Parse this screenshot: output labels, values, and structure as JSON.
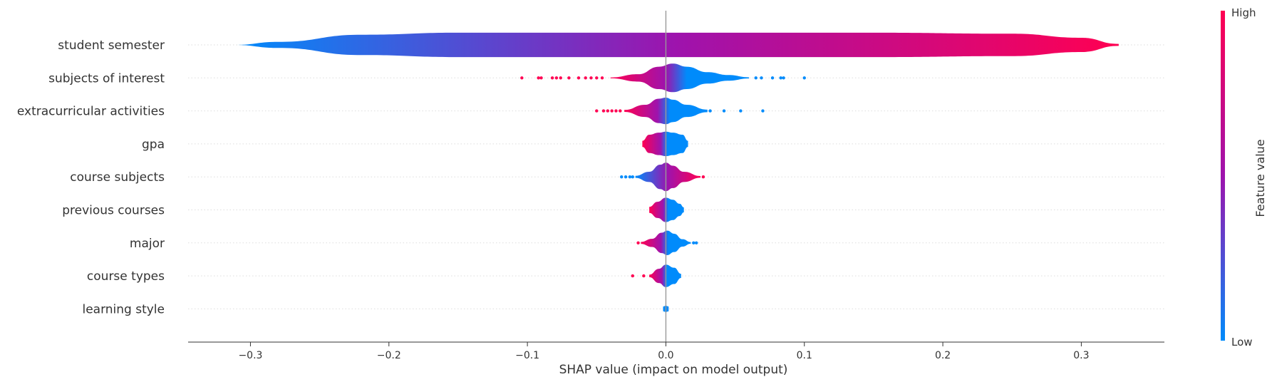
{
  "chart_data": {
    "type": "violin",
    "xlabel": "SHAP value (impact on model output)",
    "xlim": [
      -0.345,
      0.36
    ],
    "xticks": [
      {
        "value": -0.3,
        "label": "−0.3"
      },
      {
        "value": -0.2,
        "label": "−0.2"
      },
      {
        "value": -0.1,
        "label": "−0.1"
      },
      {
        "value": 0.0,
        "label": "0.0"
      },
      {
        "value": 0.1,
        "label": "0.1"
      },
      {
        "value": 0.2,
        "label": "0.2"
      },
      {
        "value": 0.3,
        "label": "0.3"
      }
    ],
    "grid": "horizontal dotted per feature",
    "colorbar": {
      "label": "Feature value",
      "high": "High",
      "low": "Low",
      "low_color": "#008bfb",
      "high_color": "#ff0052"
    },
    "features": [
      {
        "name": "student semester",
        "range": [
          -0.312,
          0.327
        ],
        "color_trend": "low_left_high_right",
        "profile": [
          [
            -0.312,
            0.0
          ],
          [
            -0.28,
            0.15
          ],
          [
            -0.22,
            0.5
          ],
          [
            -0.15,
            0.6
          ],
          [
            -0.05,
            0.6
          ],
          [
            0.05,
            0.6
          ],
          [
            0.15,
            0.6
          ],
          [
            0.25,
            0.55
          ],
          [
            0.3,
            0.35
          ],
          [
            0.327,
            0.05
          ]
        ],
        "outliers": []
      },
      {
        "name": "subjects of interest",
        "range": [
          -0.04,
          0.06
        ],
        "color_trend": "high_left_low_right",
        "profile": [
          [
            -0.04,
            0.02
          ],
          [
            -0.02,
            0.18
          ],
          [
            -0.005,
            0.55
          ],
          [
            0.005,
            0.7
          ],
          [
            0.015,
            0.55
          ],
          [
            0.03,
            0.28
          ],
          [
            0.045,
            0.14
          ],
          [
            0.06,
            0.03
          ]
        ],
        "outliers": [
          {
            "x": -0.104,
            "c": "high"
          },
          {
            "x": -0.092,
            "c": "high"
          },
          {
            "x": -0.09,
            "c": "high"
          },
          {
            "x": -0.082,
            "c": "high"
          },
          {
            "x": -0.079,
            "c": "high"
          },
          {
            "x": -0.076,
            "c": "high"
          },
          {
            "x": -0.07,
            "c": "high"
          },
          {
            "x": -0.063,
            "c": "high"
          },
          {
            "x": -0.058,
            "c": "high"
          },
          {
            "x": -0.054,
            "c": "high"
          },
          {
            "x": -0.05,
            "c": "high"
          },
          {
            "x": -0.046,
            "c": "high"
          },
          {
            "x": 0.065,
            "c": "low"
          },
          {
            "x": 0.069,
            "c": "low"
          },
          {
            "x": 0.077,
            "c": "low"
          },
          {
            "x": 0.083,
            "c": "low"
          },
          {
            "x": 0.085,
            "c": "low"
          },
          {
            "x": 0.1,
            "c": "low"
          }
        ]
      },
      {
        "name": "extracurricular activities",
        "range": [
          -0.03,
          0.03
        ],
        "color_trend": "high_left_low_right",
        "profile": [
          [
            -0.03,
            0.05
          ],
          [
            -0.015,
            0.3
          ],
          [
            -0.005,
            0.6
          ],
          [
            0.0,
            0.65
          ],
          [
            0.005,
            0.55
          ],
          [
            0.015,
            0.3
          ],
          [
            0.03,
            0.06
          ]
        ],
        "outliers": [
          {
            "x": -0.05,
            "c": "high"
          },
          {
            "x": -0.045,
            "c": "high"
          },
          {
            "x": -0.042,
            "c": "high"
          },
          {
            "x": -0.039,
            "c": "high"
          },
          {
            "x": -0.036,
            "c": "high"
          },
          {
            "x": -0.033,
            "c": "high"
          },
          {
            "x": 0.032,
            "c": "low"
          },
          {
            "x": 0.042,
            "c": "low"
          },
          {
            "x": 0.054,
            "c": "low"
          },
          {
            "x": 0.07,
            "c": "low"
          }
        ]
      },
      {
        "name": "gpa",
        "range": [
          -0.017,
          0.016
        ],
        "color_trend": "high_left_low_right",
        "profile": [
          [
            -0.017,
            0.15
          ],
          [
            -0.012,
            0.45
          ],
          [
            -0.005,
            0.55
          ],
          [
            0.0,
            0.6
          ],
          [
            0.005,
            0.55
          ],
          [
            0.012,
            0.45
          ],
          [
            0.016,
            0.15
          ]
        ],
        "outliers": []
      },
      {
        "name": "course subjects",
        "range": [
          -0.022,
          0.025
        ],
        "color_trend": "low_left_high_right",
        "profile": [
          [
            -0.022,
            0.05
          ],
          [
            -0.012,
            0.25
          ],
          [
            -0.004,
            0.6
          ],
          [
            0.0,
            0.7
          ],
          [
            0.005,
            0.55
          ],
          [
            0.013,
            0.25
          ],
          [
            0.025,
            0.04
          ]
        ],
        "outliers": [
          {
            "x": -0.032,
            "c": "low"
          },
          {
            "x": -0.029,
            "c": "low"
          },
          {
            "x": -0.026,
            "c": "low"
          },
          {
            "x": -0.024,
            "c": "low"
          },
          {
            "x": 0.027,
            "c": "high"
          }
        ]
      },
      {
        "name": "previous courses",
        "range": [
          -0.012,
          0.013
        ],
        "color_trend": "high_left_low_right",
        "profile": [
          [
            -0.012,
            0.15
          ],
          [
            -0.006,
            0.4
          ],
          [
            0.0,
            0.6
          ],
          [
            0.005,
            0.5
          ],
          [
            0.01,
            0.3
          ],
          [
            0.013,
            0.12
          ]
        ],
        "outliers": []
      },
      {
        "name": "major",
        "range": [
          -0.018,
          0.018
        ],
        "color_trend": "high_left_low_right",
        "profile": [
          [
            -0.018,
            0.05
          ],
          [
            -0.01,
            0.2
          ],
          [
            -0.003,
            0.5
          ],
          [
            0.001,
            0.6
          ],
          [
            0.006,
            0.45
          ],
          [
            0.012,
            0.18
          ],
          [
            0.018,
            0.04
          ]
        ],
        "outliers": [
          {
            "x": -0.02,
            "c": "high"
          },
          {
            "x": 0.02,
            "c": "low"
          },
          {
            "x": 0.022,
            "c": "low"
          }
        ]
      },
      {
        "name": "course types",
        "range": [
          -0.012,
          0.011
        ],
        "color_trend": "high_left_low_right",
        "profile": [
          [
            -0.012,
            0.06
          ],
          [
            -0.005,
            0.35
          ],
          [
            0.0,
            0.55
          ],
          [
            0.006,
            0.4
          ],
          [
            0.011,
            0.1
          ]
        ],
        "outliers": [
          {
            "x": -0.024,
            "c": "high"
          },
          {
            "x": -0.016,
            "c": "high"
          }
        ]
      },
      {
        "name": "learning style",
        "range": [
          -0.002,
          0.002
        ],
        "color_trend": "low",
        "profile": [
          [
            -0.002,
            0.12
          ],
          [
            0.0,
            0.15
          ],
          [
            0.002,
            0.12
          ]
        ],
        "outliers": []
      }
    ]
  }
}
